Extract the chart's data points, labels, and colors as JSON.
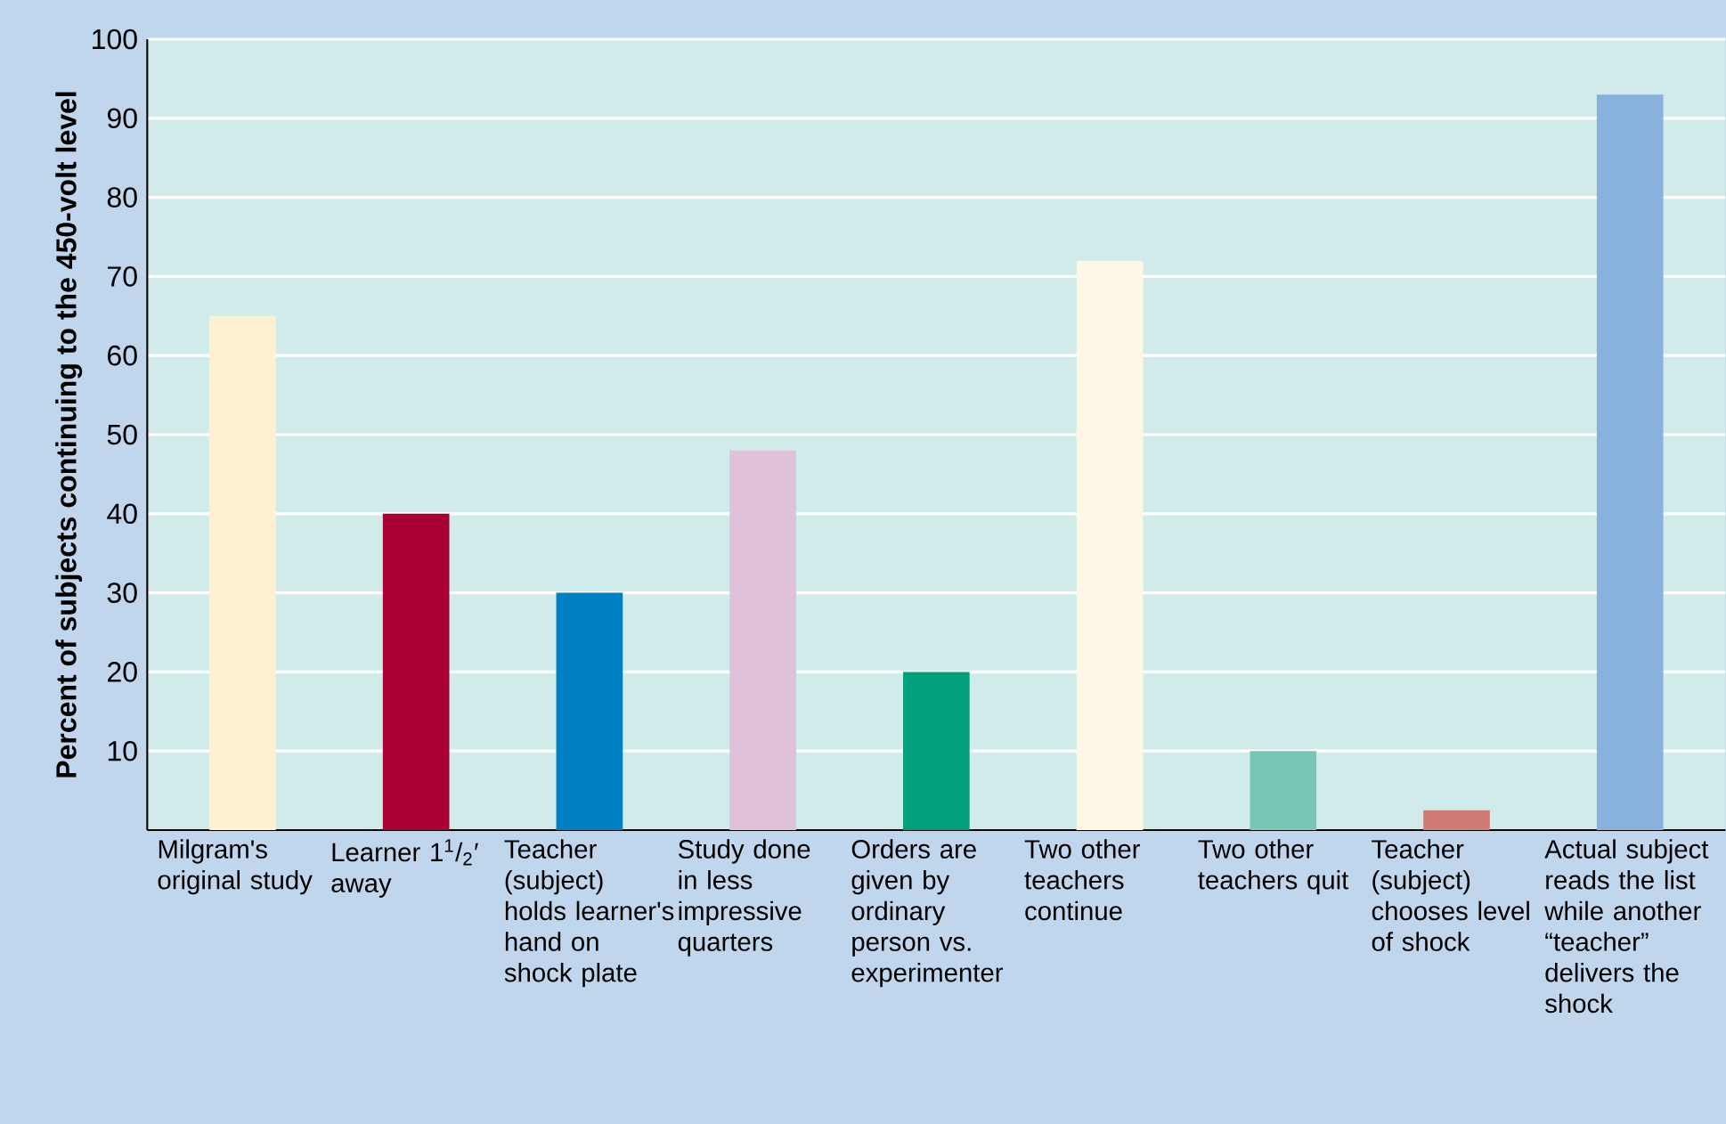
{
  "chart_data": {
    "type": "bar",
    "ylabel": "Percent of subjects continuing to the 450-volt level",
    "categories": [
      "Milgram's original study",
      "Learner 1$^{1}$/$_{2}$′ away",
      "Teacher (subject) holds learner's hand on shock plate",
      "Study done in less impressive quarters",
      "Orders are given by ordinary person vs. experimenter",
      "Two other teachers continue",
      "Two other teachers quit",
      "Teacher (subject) chooses level of shock",
      "Actual subject reads the list while another “teacher” delivers the shock"
    ],
    "values": [
      65,
      40,
      30,
      48,
      20,
      72,
      10,
      2.5,
      93
    ],
    "colors": [
      "#fff0d4",
      "#a80032",
      "#0080c4",
      "#dfc1da",
      "#00a07c",
      "#fff7e6",
      "#78c7b6",
      "#d07b76",
      "#88b1de"
    ],
    "ylim": [
      0,
      100
    ],
    "yticks": [
      10,
      20,
      30,
      40,
      50,
      60,
      70,
      80,
      90,
      100
    ],
    "grid": "y"
  }
}
